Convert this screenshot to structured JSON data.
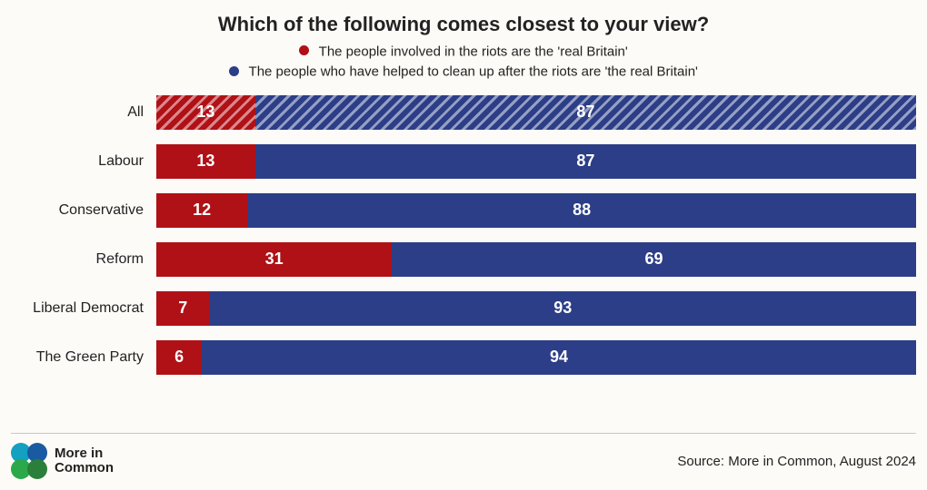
{
  "chart": {
    "type": "stacked-horizontal-bar",
    "title": "Which of the following comes closest to your view?",
    "title_fontsize": 22,
    "legend_fontsize": 15,
    "label_fontsize": 16,
    "value_fontsize": 18,
    "background_color": "#fdfbf7",
    "colors": {
      "red": "#b01116",
      "blue": "#2c3e87"
    },
    "series": [
      {
        "key": "riots",
        "color": "#b01116",
        "label": "The people involved in the riots are the 'real Britain'"
      },
      {
        "key": "cleanup",
        "color": "#2c3e87",
        "label": "The people who have helped to clean up after the riots are 'the real Britain'"
      }
    ],
    "rows": [
      {
        "label": "All",
        "riots": 13,
        "cleanup": 87,
        "hatched": true
      },
      {
        "label": "Labour",
        "riots": 13,
        "cleanup": 87,
        "hatched": false
      },
      {
        "label": "Conservative",
        "riots": 12,
        "cleanup": 88,
        "hatched": false
      },
      {
        "label": "Reform",
        "riots": 31,
        "cleanup": 69,
        "hatched": false
      },
      {
        "label": "Liberal Democrat",
        "riots": 7,
        "cleanup": 93,
        "hatched": false
      },
      {
        "label": "The Green Party",
        "riots": 6,
        "cleanup": 94,
        "hatched": false
      }
    ],
    "xlim": [
      0,
      100
    ],
    "footer": {
      "brand": "More in Common",
      "brand_colors": {
        "tl": "#14a0c0",
        "tr": "#1a5aa0",
        "bl": "#2aa84a",
        "br": "#2a7f3a"
      },
      "source": "Source: More in Common, August 2024",
      "source_fontsize": 15
    }
  }
}
